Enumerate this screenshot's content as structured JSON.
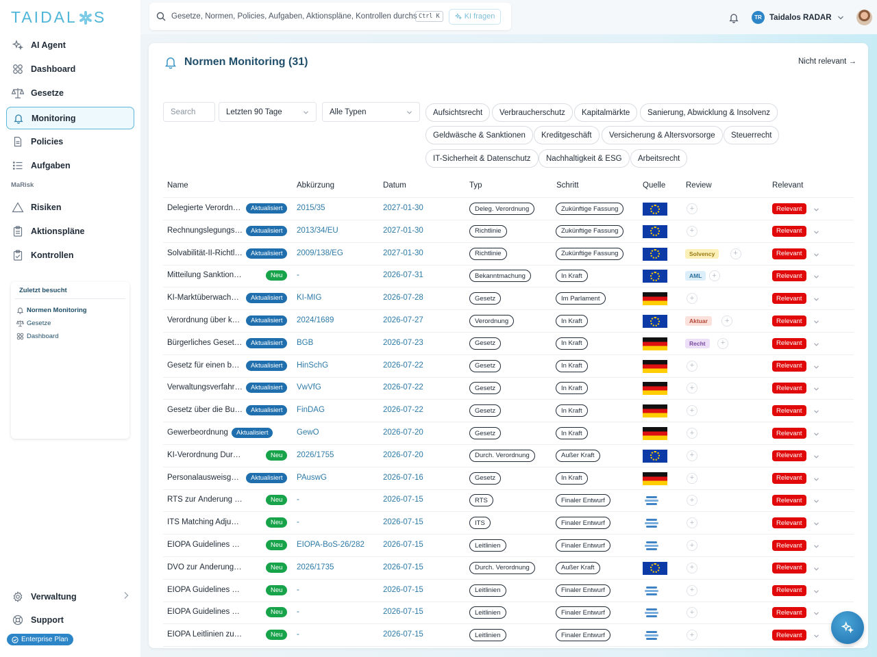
{
  "brand": {
    "logo_pre": "TAIDAL",
    "logo_post": "S"
  },
  "sidebar": {
    "items": [
      {
        "label": "AI Agent",
        "icon": "sparkle-icon"
      },
      {
        "label": "Dashboard",
        "icon": "grid-icon"
      },
      {
        "label": "Gesetze",
        "icon": "scale-icon"
      },
      {
        "label": "Monitoring",
        "icon": "bell-icon",
        "active": true
      },
      {
        "label": "Policies",
        "icon": "document-icon"
      },
      {
        "label": "Aufgaben",
        "icon": "list-icon"
      }
    ],
    "section": "MaRisk",
    "marisk_items": [
      {
        "label": "Risiken",
        "icon": "warning-icon"
      },
      {
        "label": "Aktionspläne",
        "icon": "clipboard-icon"
      },
      {
        "label": "Kontrollen",
        "icon": "clipboard-check-icon"
      }
    ],
    "recent": {
      "title": "Zuletzt besucht",
      "items": [
        {
          "label": "Normen Monitoring",
          "icon": "bell-icon"
        },
        {
          "label": "Gesetze",
          "icon": "scale-icon"
        },
        {
          "label": "Dashboard",
          "icon": "grid-icon"
        }
      ]
    },
    "bottom": [
      {
        "label": "Verwaltung",
        "icon": "gear-icon"
      },
      {
        "label": "Support",
        "icon": "lifebuoy-icon"
      }
    ],
    "plan": "Enterprise Plan"
  },
  "topbar": {
    "search_placeholder": "Gesetze, Normen, Policies, Aufgaben, Aktionspläne, Kontrollen durchs",
    "shortcut": "Ctrl K",
    "ki_button": "KI fragen",
    "user_initials": "TR",
    "user_name": "Taidalos RADAR"
  },
  "page": {
    "title": "Normen Monitoring (31)",
    "not_relevant_link": "Nicht relevant →",
    "filters": {
      "search_placeholder": "Search",
      "period": "Letzten 90 Tage",
      "type": "Alle Typen"
    },
    "chips": [
      "Aufsichtsrecht",
      "Verbraucherschutz",
      "Kapitalmärkte",
      "Sanierung, Abwicklung & Insolvenz",
      "Geldwäsche & Sanktionen",
      "Kreditgeschäft",
      "Versicherung & Altersvorsorge",
      "Steuerrecht",
      "IT-Sicherheit & Datenschutz",
      "Nachhaltigkeit & ESG",
      "Arbeitsrecht"
    ],
    "columns": [
      "Name",
      "Abkürzung",
      "Datum",
      "Typ",
      "Schritt",
      "Quelle",
      "Review",
      "Relevant"
    ],
    "colors": {
      "akt": "#1f6fae",
      "neu": "#16a34a",
      "relevant": "#e00808",
      "accent": "#3a95c4"
    },
    "rows": [
      {
        "name": "Delegierte Verordnung",
        "status": "Aktualisiert",
        "abbr": "2015/35",
        "date": "2027-01-30",
        "type": "Deleg. Verordnung",
        "step": "Zukünftige Fassung",
        "source": "eu",
        "review": "",
        "relevant": "Relevant"
      },
      {
        "name": "Rechnungslegungsrichtlinie",
        "status": "Aktualisiert",
        "abbr": "2013/34/EU",
        "date": "2027-01-30",
        "type": "Richtlinie",
        "step": "Zukünftige Fassung",
        "source": "eu",
        "review": "",
        "relevant": "Relevant"
      },
      {
        "name": "Solvabilität-II-Richtlinie",
        "status": "Aktualisiert",
        "abbr": "2009/138/EG",
        "date": "2027-01-30",
        "type": "Richtlinie",
        "step": "Zukünftige Fassung",
        "source": "eu",
        "review": "Solvency",
        "review_bg": "#fbf0b8",
        "review_fg": "#9a7a12",
        "relevant": "Relevant"
      },
      {
        "name": "Mitteilung Sanktionsliste",
        "status": "Neu",
        "abbr": "-",
        "date": "2026-07-31",
        "type": "Bekanntmachung",
        "step": "In Kraft",
        "source": "eu",
        "review": "AML",
        "review_bg": "#dbeefa",
        "review_fg": "#2d6f9c",
        "relevant": "Relevant"
      },
      {
        "name": "KI-Marktüberwachungsgesetz",
        "status": "Aktualisiert",
        "abbr": "KI-MIG",
        "date": "2026-07-28",
        "type": "Gesetz",
        "step": "Im Parlament",
        "source": "de",
        "review": "",
        "relevant": "Relevant"
      },
      {
        "name": "Verordnung über künstliche Intelligenz",
        "status": "Aktualisiert",
        "abbr": "2024/1689",
        "date": "2026-07-27",
        "type": "Verordnung",
        "step": "In Kraft",
        "source": "eu",
        "review": "Aktuar",
        "review_bg": "#fbe1dc",
        "review_fg": "#b4493a",
        "relevant": "Relevant"
      },
      {
        "name": "Bürgerliches Gesetzbuch",
        "status": "Aktualisiert",
        "abbr": "BGB",
        "date": "2026-07-23",
        "type": "Gesetz",
        "step": "In Kraft",
        "source": "de",
        "review": "Recht",
        "review_bg": "#ecdff7",
        "review_fg": "#7a4aa3",
        "relevant": "Relevant"
      },
      {
        "name": "Gesetz für einen besseren Schutz",
        "status": "Aktualisiert",
        "abbr": "HinSchG",
        "date": "2026-07-22",
        "type": "Gesetz",
        "step": "In Kraft",
        "source": "de",
        "review": "",
        "relevant": "Relevant"
      },
      {
        "name": "Verwaltungsverfahrensgesetz",
        "status": "Aktualisiert",
        "abbr": "VwVfG",
        "date": "2026-07-22",
        "type": "Gesetz",
        "step": "In Kraft",
        "source": "de",
        "review": "",
        "relevant": "Relevant"
      },
      {
        "name": "Gesetz über die Bundesanstalt",
        "status": "Aktualisiert",
        "abbr": "FinDAG",
        "date": "2026-07-22",
        "type": "Gesetz",
        "step": "In Kraft",
        "source": "de",
        "review": "",
        "relevant": "Relevant"
      },
      {
        "name": "Gewerbeordnung",
        "status": "Aktualisiert",
        "abbr": "GewO",
        "date": "2026-07-20",
        "type": "Gesetz",
        "step": "In Kraft",
        "source": "de",
        "review": "",
        "relevant": "Relevant"
      },
      {
        "name": "KI-Verordnung Durchführungsverordnung",
        "status": "Neu",
        "abbr": "2026/1755",
        "date": "2026-07-20",
        "type": "Durch. Verordnung",
        "step": "Außer Kraft",
        "source": "eu",
        "review": "",
        "relevant": "Relevant"
      },
      {
        "name": "Personalausweisgesetz",
        "status": "Aktualisiert",
        "abbr": "PAuswG",
        "date": "2026-07-16",
        "type": "Gesetz",
        "step": "In Kraft",
        "source": "de",
        "review": "",
        "relevant": "Relevant"
      },
      {
        "name": "RTS zur Änderung der Risikomarge",
        "status": "Neu",
        "abbr": "-",
        "date": "2026-07-15",
        "type": "RTS",
        "step": "Finaler Entwurf",
        "source": "eiopa",
        "review": "",
        "relevant": "Relevant"
      },
      {
        "name": "ITS Matching Adjustment",
        "status": "Neu",
        "abbr": "-",
        "date": "2026-07-15",
        "type": "ITS",
        "step": "Finaler Entwurf",
        "source": "eiopa",
        "review": "",
        "relevant": "Relevant"
      },
      {
        "name": "EIOPA Guidelines on Liquidity",
        "status": "Neu",
        "abbr": "EIOPA-BoS-26/282",
        "date": "2026-07-15",
        "type": "Leitlinien",
        "step": "Finaler Entwurf",
        "source": "eiopa",
        "review": "",
        "relevant": "Relevant"
      },
      {
        "name": "DVO zur Änderung der Standardformel",
        "status": "Neu",
        "abbr": "2026/1735",
        "date": "2026-07-15",
        "type": "Durch. Verordnung",
        "step": "Außer Kraft",
        "source": "eu",
        "review": "",
        "relevant": "Relevant"
      },
      {
        "name": "EIOPA Guidelines on valuation",
        "status": "Neu",
        "abbr": "-",
        "date": "2026-07-15",
        "type": "Leitlinien",
        "step": "Finaler Entwurf",
        "source": "eiopa",
        "review": "",
        "relevant": "Relevant"
      },
      {
        "name": "EIOPA Guidelines on ring-fencing",
        "status": "Neu",
        "abbr": "-",
        "date": "2026-07-15",
        "type": "Leitlinien",
        "step": "Finaler Entwurf",
        "source": "eiopa",
        "review": "",
        "relevant": "Relevant"
      },
      {
        "name": "EIOPA Leitlinien zur Gruppensolvabilität",
        "status": "Neu",
        "abbr": "-",
        "date": "2026-07-15",
        "type": "Leitlinien",
        "step": "Finaler Entwurf",
        "source": "eiopa",
        "review": "",
        "relevant": "Relevant"
      }
    ]
  }
}
